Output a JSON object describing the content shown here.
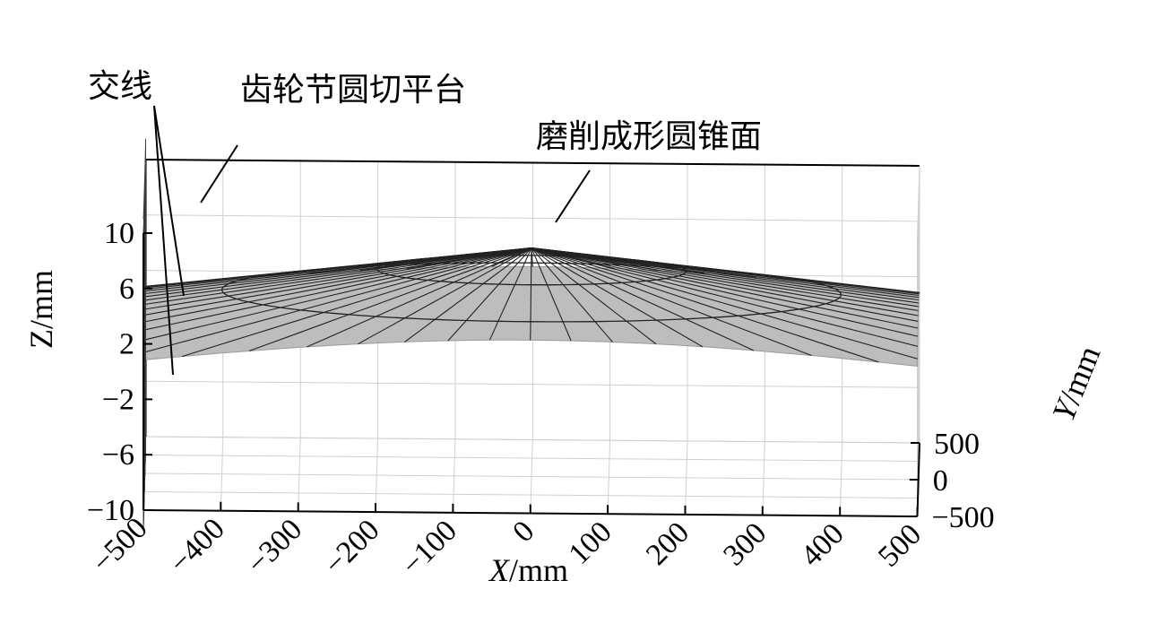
{
  "chart_data": {
    "type": "surface3d",
    "x_axis": {
      "label_var": "X",
      "label_unit": "/mm",
      "ticks": [
        "−500",
        "−400",
        "−300",
        "−200",
        "−100",
        "0",
        "100",
        "200",
        "300",
        "400",
        "500"
      ],
      "range": [
        -500,
        500
      ]
    },
    "y_axis": {
      "label_var": "Y",
      "label_unit": "/mm",
      "ticks": [
        "−500",
        "0",
        "500"
      ],
      "range": [
        -500,
        500
      ]
    },
    "z_axis": {
      "label": "Z/mm",
      "ticks": [
        "−10",
        "−6",
        "−2",
        "2",
        "6",
        "10"
      ],
      "range": [
        -10,
        10
      ]
    },
    "grid": true,
    "surfaces": [
      {
        "name": "磨削成形圆锥面",
        "kind": "cone",
        "apex": [
          0,
          0,
          6.5
        ],
        "color": "#bdbdbd"
      },
      {
        "name": "齿轮节圆切平台",
        "kind": "vertical plane",
        "x": -500,
        "color": "#6f6f6f"
      }
    ],
    "annotations": [
      "交线",
      "齿轮节圆切平台",
      "磨削成形圆锥面"
    ]
  }
}
